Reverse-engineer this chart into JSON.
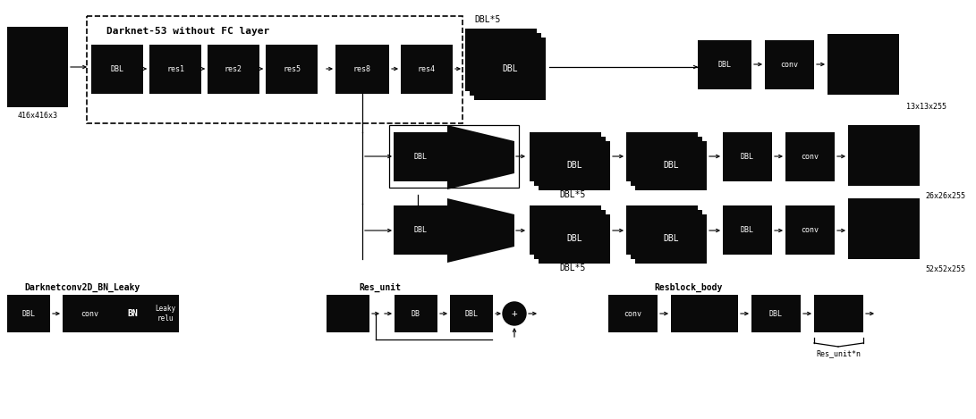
{
  "bg_color": "#ffffff",
  "block_color": "#0a0a0a",
  "text_color": "#ffffff",
  "label_color": "#000000",
  "arrow_color": "#000000",
  "darknet_label": "Darknet-53 without FC layer",
  "input_label": "416x416x3",
  "output_labels": [
    "13x13x255",
    "26x26x255",
    "52x52x255"
  ],
  "dbl5_label": "DBL*5",
  "legend_labels": [
    "Darknetconv2D_BN_Leaky",
    "Res_unit",
    "Resblock_body"
  ]
}
